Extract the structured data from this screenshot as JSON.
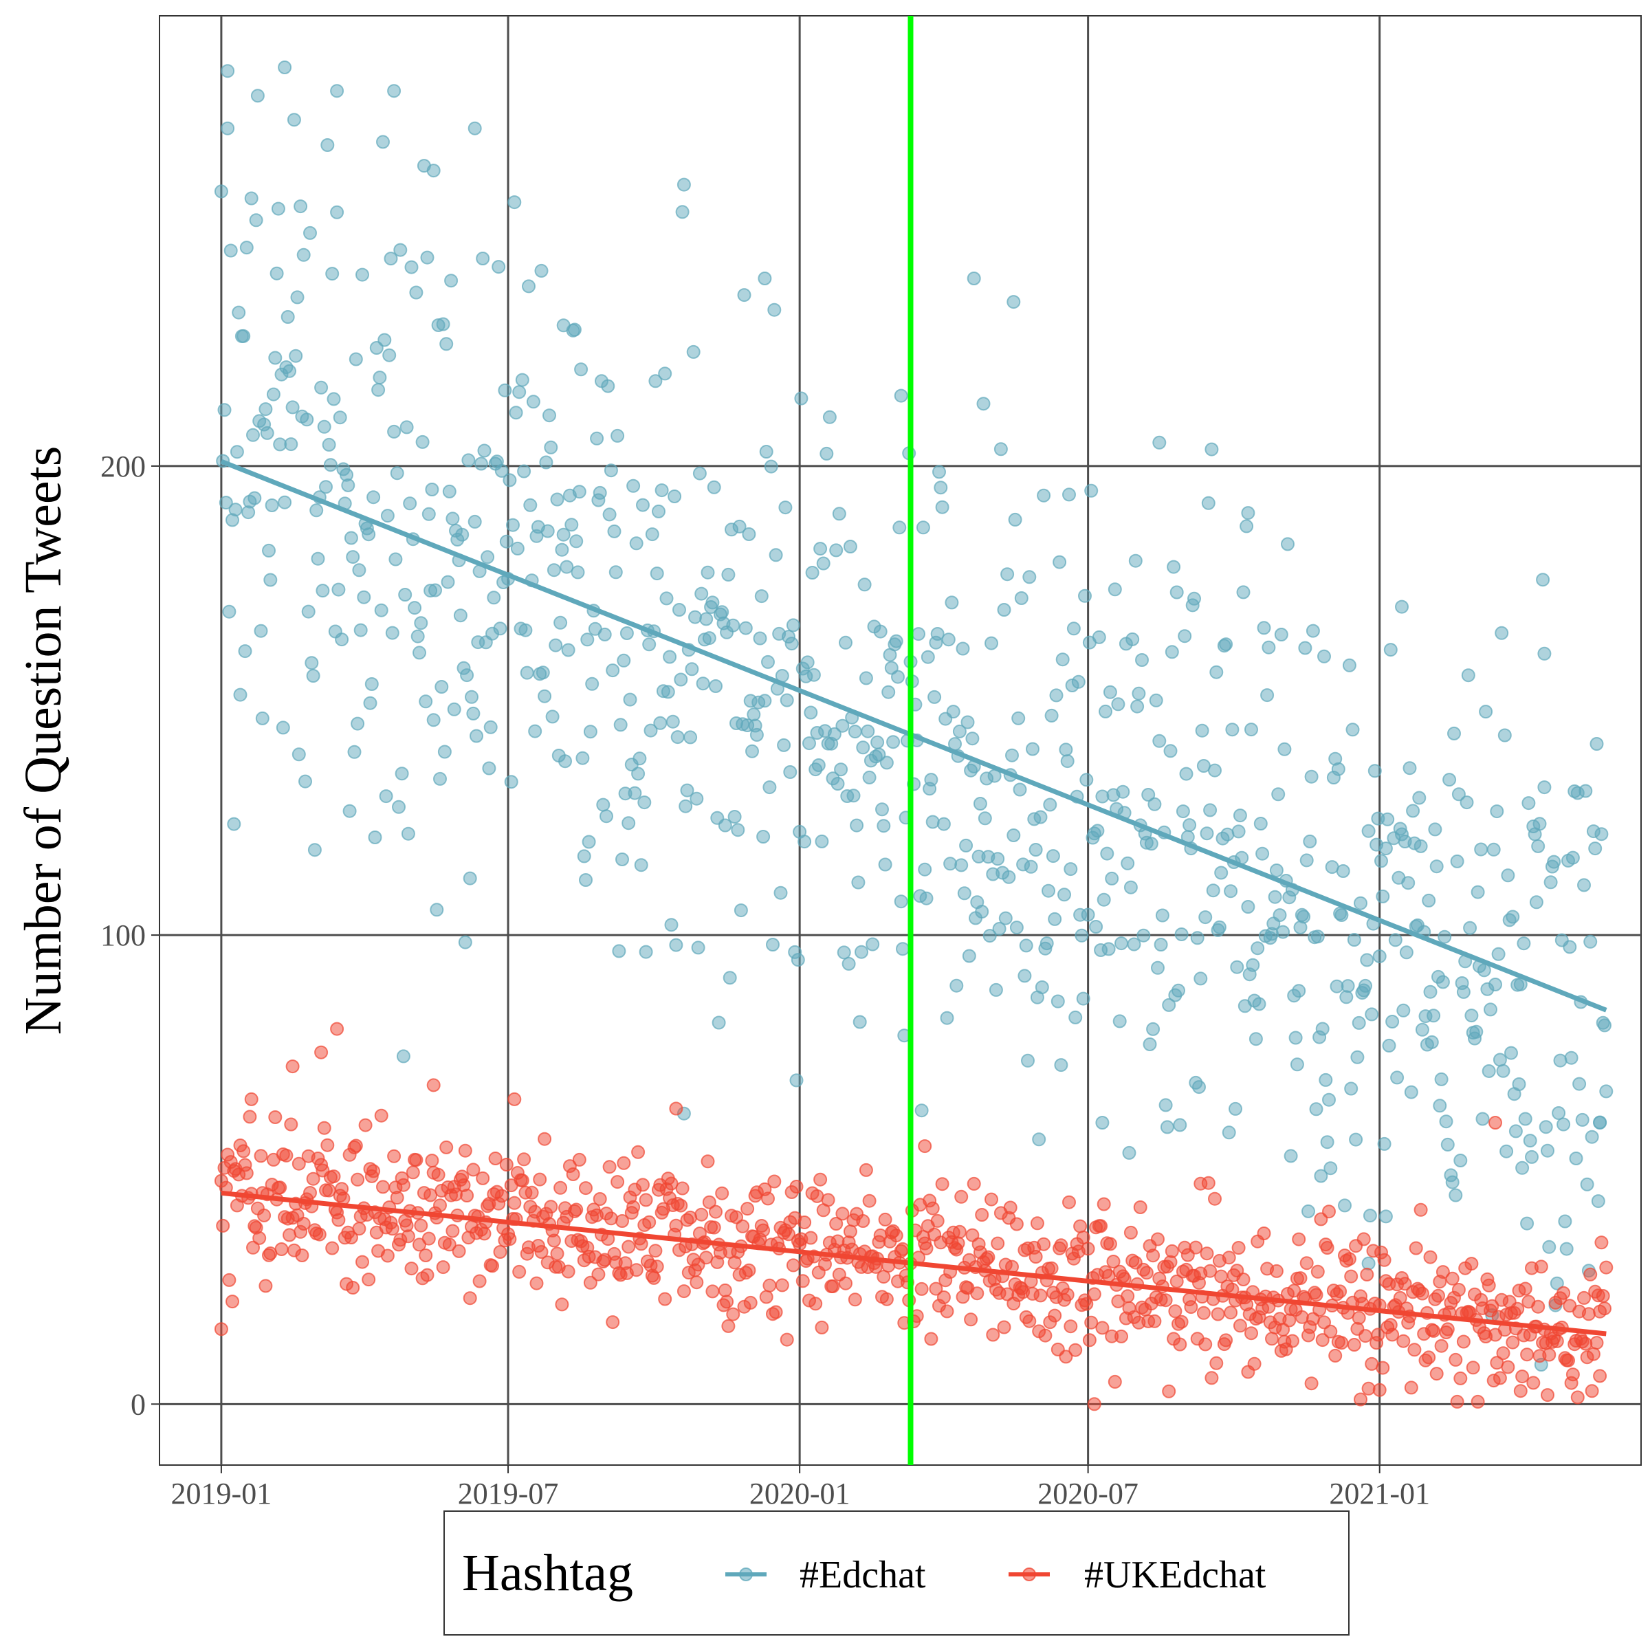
{
  "chart_data": {
    "type": "scatter",
    "title": "",
    "xlabel": "",
    "ylabel": "Number of Question Tweets",
    "x_ticks": [
      "2019-01",
      "2019-07",
      "2020-01",
      "2020-07",
      "2021-01"
    ],
    "y_ticks": [
      0,
      100,
      200
    ],
    "xlim": [
      "2018-11-23",
      "2021-06-15"
    ],
    "ylim": [
      -13,
      296
    ],
    "grid": true,
    "vline": {
      "x": "2020-03-11",
      "color": "#00ff00"
    },
    "legend": {
      "title": "Hashtag",
      "placement": "bottom",
      "entries": [
        "#Edchat",
        "#UKEdchat"
      ]
    },
    "series": [
      {
        "name": "#Edchat",
        "color": "#5fa8bb",
        "trend": {
          "x": [
            "2019-01-01",
            "2021-05-24"
          ],
          "y": [
            201,
            84
          ]
        },
        "sample_points": [
          {
            "x": "2019-01-05",
            "y": 272
          },
          {
            "x": "2019-02-10",
            "y": 285
          },
          {
            "x": "2019-03-15",
            "y": 280
          },
          {
            "x": "2019-04-20",
            "y": 280
          },
          {
            "x": "2019-05-15",
            "y": 263
          },
          {
            "x": "2019-06-10",
            "y": 272
          },
          {
            "x": "2019-08-05",
            "y": 230
          },
          {
            "x": "2019-10-20",
            "y": 260
          },
          {
            "x": "2019-12-10",
            "y": 240
          },
          {
            "x": "2020-03-05",
            "y": 215
          },
          {
            "x": "2020-04-20",
            "y": 240
          },
          {
            "x": "2020-05-15",
            "y": 235
          },
          {
            "x": "2020-08-15",
            "y": 205
          },
          {
            "x": "2020-10-10",
            "y": 190
          },
          {
            "x": "2021-01-15",
            "y": 170
          },
          {
            "x": "2021-04-15",
            "y": 160
          },
          {
            "x": "2020-07-10",
            "y": 60
          },
          {
            "x": "2021-01-05",
            "y": 40
          },
          {
            "x": "2020-12-25",
            "y": 30
          },
          {
            "x": "2021-05-20",
            "y": 60
          }
        ]
      },
      {
        "name": "#UKEdchat",
        "color": "#f04632",
        "trend": {
          "x": [
            "2019-01-01",
            "2021-05-24"
          ],
          "y": [
            45,
            15
          ]
        },
        "sample_points": [
          {
            "x": "2019-03-15",
            "y": 80
          },
          {
            "x": "2019-03-05",
            "y": 75
          },
          {
            "x": "2019-02-15",
            "y": 72
          },
          {
            "x": "2019-01-20",
            "y": 65
          },
          {
            "x": "2019-05-15",
            "y": 68
          },
          {
            "x": "2019-07-05",
            "y": 65
          },
          {
            "x": "2019-10-15",
            "y": 63
          },
          {
            "x": "2020-03-20",
            "y": 55
          },
          {
            "x": "2020-09-10",
            "y": 47
          },
          {
            "x": "2021-03-15",
            "y": 60
          },
          {
            "x": "2020-07-05",
            "y": 0
          },
          {
            "x": "2020-12-20",
            "y": 1
          },
          {
            "x": "2021-01-01",
            "y": 3
          },
          {
            "x": "2019-01-01",
            "y": 16
          },
          {
            "x": "2021-05-20",
            "y": 6
          }
        ]
      }
    ]
  }
}
